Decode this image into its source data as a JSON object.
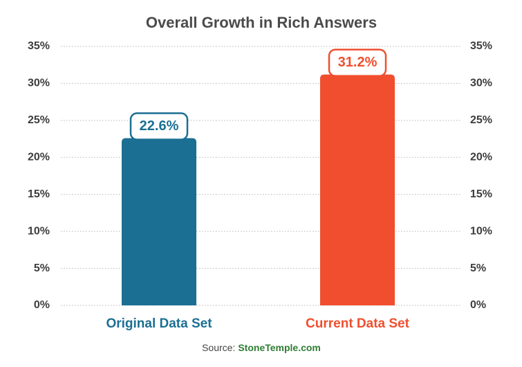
{
  "chart_data": {
    "type": "bar",
    "title": "Overall Growth in Rich Answers",
    "categories": [
      "Original Data Set",
      "Current Data Set"
    ],
    "values": [
      22.6,
      31.2
    ],
    "value_labels": [
      "22.6%",
      "31.2%"
    ],
    "colors": [
      "#1b6f93",
      "#f04e2e"
    ],
    "ylim": [
      0,
      35
    ],
    "yticks": [
      {
        "value": 0,
        "label": "0%"
      },
      {
        "value": 5,
        "label": "5%"
      },
      {
        "value": 10,
        "label": "10%"
      },
      {
        "value": 15,
        "label": "15%"
      },
      {
        "value": 20,
        "label": "20%"
      },
      {
        "value": 25,
        "label": "25%"
      },
      {
        "value": 30,
        "label": "30%"
      },
      {
        "value": 35,
        "label": "35%"
      }
    ],
    "grid": true,
    "source_label": "Source:",
    "source_name": "StoneTemple.com"
  }
}
